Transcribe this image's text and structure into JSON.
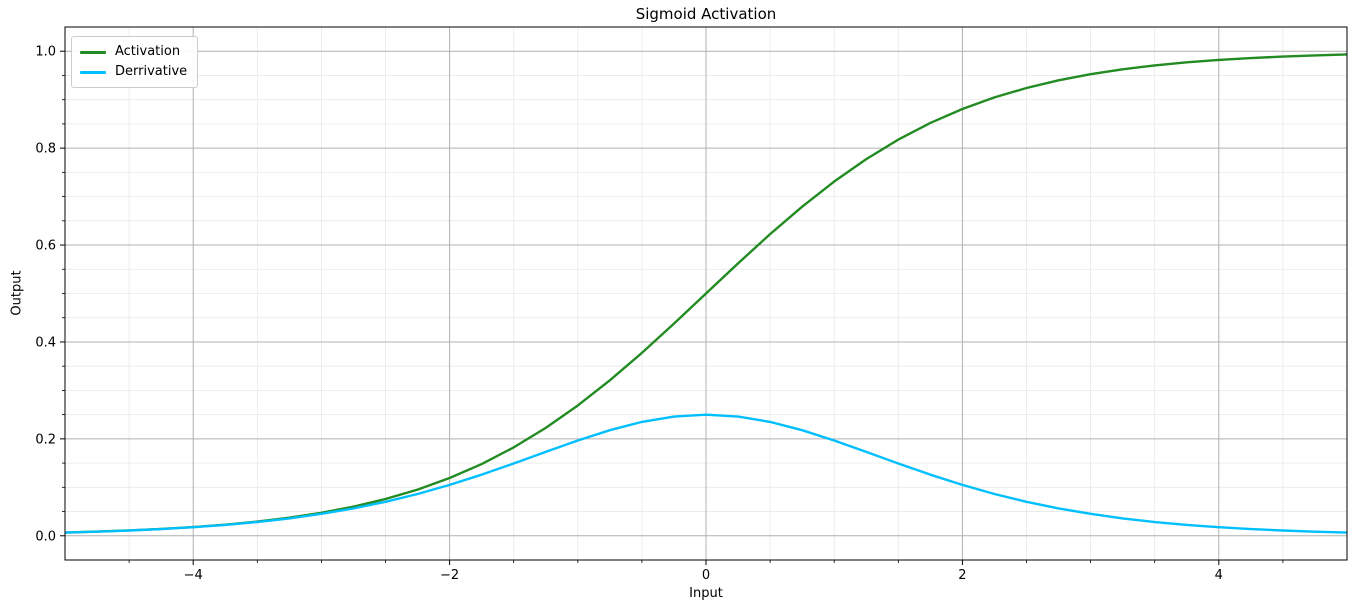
{
  "chart_data": {
    "type": "line",
    "title": "Sigmoid Activation",
    "xlabel": "Input",
    "ylabel": "Output",
    "xlim": [
      -5,
      5
    ],
    "ylim": [
      -0.05,
      1.05
    ],
    "xticks": {
      "values": [
        -4,
        -2,
        0,
        2,
        4
      ],
      "labels": [
        "−4",
        "−2",
        "0",
        "2",
        "4"
      ]
    },
    "yticks": {
      "values": [
        0.0,
        0.2,
        0.4,
        0.6,
        0.8,
        1.0
      ],
      "labels": [
        "0.0",
        "0.2",
        "0.4",
        "0.6",
        "0.8",
        "1.0"
      ]
    },
    "minor_tick_step": {
      "x": 0.5,
      "y": 0.05
    },
    "grid": {
      "major": true,
      "minor": true,
      "major_color": "#b0b0b0",
      "minor_color": "#e8e8e8"
    },
    "spine_color": "#000000",
    "legend": {
      "position": "upper-left",
      "entries": [
        {
          "label": "Activation",
          "color": "#228B22"
        },
        {
          "label": "Derrivative",
          "color": "#00BFFF"
        }
      ]
    },
    "x": [
      -5,
      -4.75,
      -4.5,
      -4.25,
      -4,
      -3.75,
      -3.5,
      -3.25,
      -3,
      -2.75,
      -2.5,
      -2.25,
      -2,
      -1.75,
      -1.5,
      -1.25,
      -1,
      -0.75,
      -0.5,
      -0.25,
      0,
      0.25,
      0.5,
      0.75,
      1,
      1.25,
      1.5,
      1.75,
      2,
      2.25,
      2.5,
      2.75,
      3,
      3.25,
      3.5,
      3.75,
      4,
      4.25,
      4.5,
      4.75,
      5
    ],
    "series": [
      {
        "name": "Activation",
        "color": "#228B22",
        "values": [
          0.0067,
          0.0086,
          0.011,
          0.0141,
          0.018,
          0.0229,
          0.0293,
          0.0373,
          0.0474,
          0.0601,
          0.0759,
          0.0953,
          0.1192,
          0.148,
          0.1824,
          0.2227,
          0.2689,
          0.3208,
          0.3775,
          0.4378,
          0.5,
          0.5622,
          0.6225,
          0.6792,
          0.7311,
          0.7773,
          0.8176,
          0.852,
          0.8808,
          0.9047,
          0.9241,
          0.9399,
          0.9526,
          0.9627,
          0.9707,
          0.9771,
          0.982,
          0.9859,
          0.989,
          0.9914,
          0.9933
        ]
      },
      {
        "name": "Derrivative",
        "color": "#00BFFF",
        "values": [
          0.0066,
          0.0085,
          0.0109,
          0.0139,
          0.0177,
          0.0224,
          0.0284,
          0.0359,
          0.0452,
          0.0565,
          0.0701,
          0.0862,
          0.105,
          0.1261,
          0.1491,
          0.1731,
          0.1966,
          0.2179,
          0.235,
          0.2461,
          0.25,
          0.2461,
          0.235,
          0.2179,
          0.1966,
          0.1731,
          0.1491,
          0.1261,
          0.105,
          0.0862,
          0.0701,
          0.0565,
          0.0452,
          0.0359,
          0.0284,
          0.0224,
          0.0177,
          0.0139,
          0.0109,
          0.0085,
          0.0066
        ]
      }
    ]
  }
}
